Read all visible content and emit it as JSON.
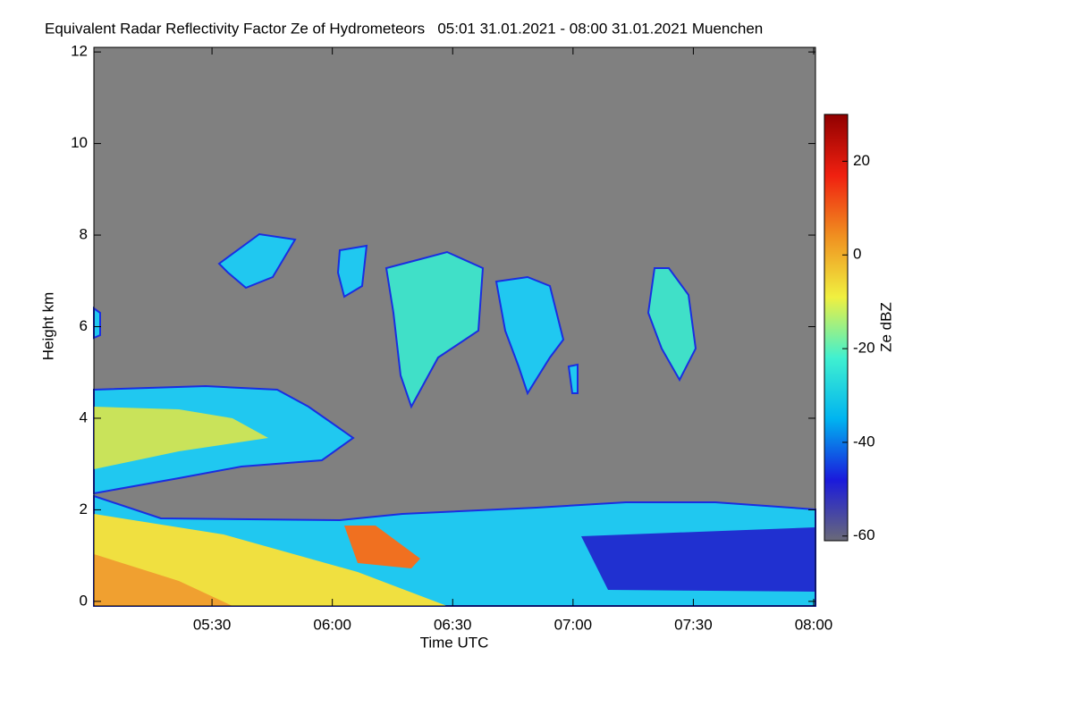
{
  "chart_data": {
    "type": "heatmap",
    "title": "Equivalent Radar Reflectivity Factor Ze of Hydrometeors   05:01 31.01.2021 - 08:00 31.01.2021 Muenchen",
    "x_label": "Time UTC",
    "y_label": "Height km",
    "colorbar_label": "Ze dBZ",
    "xlim": [
      "05:01",
      "08:00"
    ],
    "xticks": [
      "05:30",
      "06:00",
      "06:30",
      "07:00",
      "07:30",
      "08:00"
    ],
    "ylim": [
      -0.1,
      12.1
    ],
    "yticks": [
      0,
      2,
      4,
      6,
      8,
      10,
      12
    ],
    "zlim": [
      -61,
      30
    ],
    "zticks": [
      -60,
      -40,
      -20,
      0,
      20
    ],
    "colormap": [
      "#6a6a78",
      "#1a1adc",
      "#00b4f0",
      "#40f0d0",
      "#f0f040",
      "#f09020",
      "#f02010",
      "#900000"
    ],
    "background": "#808080"
  }
}
